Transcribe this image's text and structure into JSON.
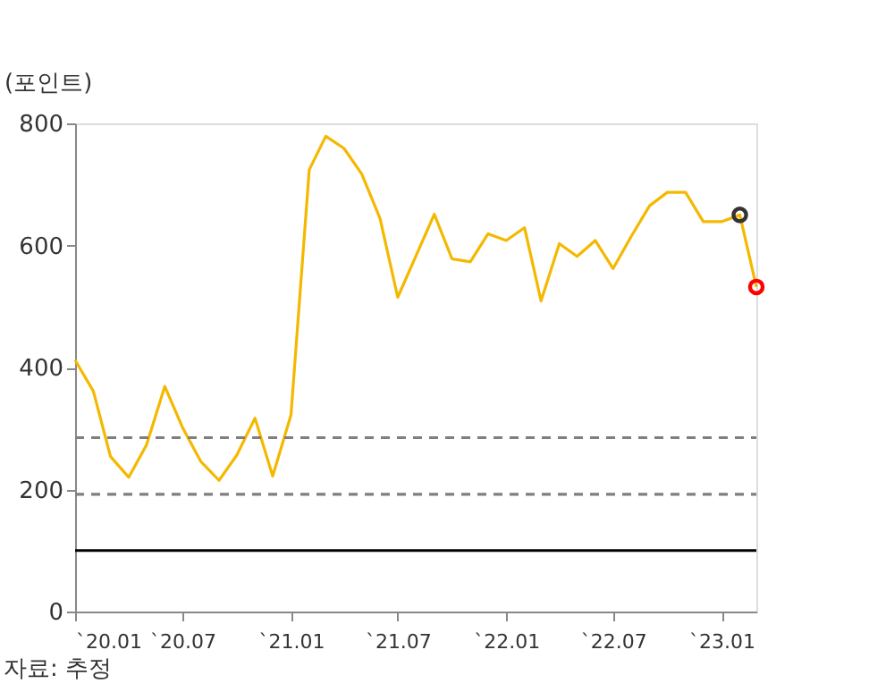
{
  "chart_data": {
    "type": "line",
    "ylabel": "(포인트)",
    "x": [
      "2020-01",
      "2020-02",
      "2020-03",
      "2020-04",
      "2020-05",
      "2020-06",
      "2020-07",
      "2020-08",
      "2020-09",
      "2020-10",
      "2020-11",
      "2020-12",
      "2021-01",
      "2021-02",
      "2021-03",
      "2021-04",
      "2021-05",
      "2021-06",
      "2021-07",
      "2021-08",
      "2021-09",
      "2021-10",
      "2021-11",
      "2021-12",
      "2022-01",
      "2022-02",
      "2022-03",
      "2022-04",
      "2022-05",
      "2022-06",
      "2022-07",
      "2022-08",
      "2022-09",
      "2022-10",
      "2022-11",
      "2022-12",
      "2023-01",
      "2023-02",
      "2023-03"
    ],
    "series": [
      {
        "type": "line",
        "color": "#f5b800",
        "marker": "none",
        "values": [
          412,
          361,
          254,
          220,
          273,
          369,
          302,
          246,
          215,
          256,
          317,
          222,
          322,
          724,
          779,
          759,
          717,
          644,
          515,
          583,
          651,
          578,
          573,
          619,
          608,
          629,
          509,
          603,
          582,
          608,
          562,
          615,
          665,
          687,
          687,
          639,
          639,
          650,
          532
        ]
      },
      {
        "type": "scatter",
        "x": [
          "2023-02"
        ],
        "color": "#333333",
        "marker": "circle",
        "values": [
          650
        ]
      },
      {
        "type": "scatter",
        "x": [
          "2023-03"
        ],
        "color": "#ff0000",
        "marker": "circle",
        "values": [
          532
        ]
      }
    ],
    "xlim": [
      "2020-01",
      "2023-03"
    ],
    "xticks": [
      {
        "value": "2020-01",
        "label": "`20.01"
      },
      {
        "value": "2020-07",
        "label": "`20.07"
      },
      {
        "value": "2021-01",
        "label": "`21.01"
      },
      {
        "value": "2021-07",
        "label": "`21.07"
      },
      {
        "value": "2022-01",
        "label": "`22.01"
      },
      {
        "value": "2022-07",
        "label": "`22.07"
      },
      {
        "value": "2023-01",
        "label": "`23.01"
      }
    ],
    "ylim": [
      0,
      800
    ],
    "yticks": [
      0,
      200,
      400,
      600,
      800
    ],
    "ref_lines": [
      {
        "axis": "y",
        "value": 285,
        "color": "#7f7f7f",
        "line_style": "dashed"
      },
      {
        "axis": "y",
        "value": 192,
        "color": "#7f7f7f",
        "line_style": "dashed"
      },
      {
        "axis": "y",
        "value": 100,
        "color": "#000000",
        "line_style": "solid"
      }
    ],
    "grid": false,
    "legend": false,
    "annotations": [
      "자료: 추정"
    ]
  }
}
